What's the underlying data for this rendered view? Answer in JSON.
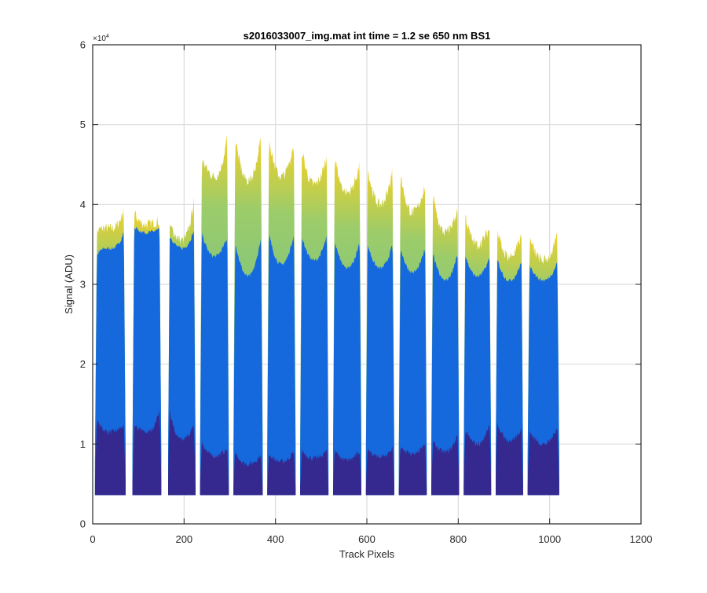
{
  "chart_data": {
    "type": "area",
    "title": "s2016033007_img.mat int time = 1.2 se  650 nm BS1",
    "xlabel": "Track Pixels",
    "ylabel": "Signal (ADU)",
    "xlim": [
      0,
      1200
    ],
    "ylim": [
      0,
      60000
    ],
    "y_exponent_label": "×10",
    "y_exponent_power": "4",
    "xticks": [
      0,
      200,
      400,
      600,
      800,
      1000,
      1200
    ],
    "xtick_labels": [
      "0",
      "200",
      "400",
      "600",
      "800",
      "1000",
      "1200"
    ],
    "yticks": [
      0,
      10000,
      20000,
      30000,
      40000,
      50000,
      60000
    ],
    "ytick_labels": [
      "0",
      "1",
      "2",
      "3",
      "4",
      "5",
      "6"
    ],
    "grid": true,
    "baseline": 3600,
    "colors": {
      "dark": "#35298f",
      "mid": "#1569dc",
      "light": "#4db7a4",
      "top": "#f1d027"
    },
    "segments": [
      {
        "x": [
          5,
          72
        ],
        "dark": [
          13500,
          11500,
          12500
        ],
        "mid": [
          33000,
          34500,
          37500
        ],
        "top": [
          36000,
          37000,
          40500
        ]
      },
      {
        "x": [
          87,
          150
        ],
        "dark": [
          12000,
          11500,
          15500
        ],
        "mid": [
          37500,
          36500,
          37000
        ],
        "top": [
          39500,
          37500,
          38000
        ]
      },
      {
        "x": [
          165,
          225
        ],
        "dark": [
          15500,
          10500,
          12500
        ],
        "mid": [
          36500,
          34500,
          37500
        ],
        "top": [
          37500,
          35500,
          42500
        ]
      },
      {
        "x": [
          235,
          298
        ],
        "dark": [
          11000,
          8500,
          9500
        ],
        "mid": [
          37500,
          33500,
          36500
        ],
        "top": [
          46000,
          43500,
          50500
        ]
      },
      {
        "x": [
          308,
          372
        ],
        "dark": [
          9500,
          7500,
          9000
        ],
        "mid": [
          36500,
          31000,
          37500
        ],
        "top": [
          50000,
          43000,
          50000
        ]
      },
      {
        "x": [
          382,
          444
        ],
        "dark": [
          9000,
          7800,
          9500
        ],
        "mid": [
          37500,
          32500,
          37500
        ],
        "top": [
          50000,
          43500,
          49000
        ]
      },
      {
        "x": [
          454,
          516
        ],
        "dark": [
          9500,
          8200,
          9500
        ],
        "mid": [
          37000,
          33000,
          37000
        ],
        "top": [
          48500,
          42500,
          47000
        ]
      },
      {
        "x": [
          526,
          588
        ],
        "dark": [
          9500,
          8000,
          9500
        ],
        "mid": [
          36500,
          32000,
          36500
        ],
        "top": [
          47500,
          41500,
          46000
        ]
      },
      {
        "x": [
          598,
          660
        ],
        "dark": [
          9500,
          8500,
          10000
        ],
        "mid": [
          36000,
          32000,
          36000
        ],
        "top": [
          46000,
          40000,
          45500
        ]
      },
      {
        "x": [
          670,
          731
        ],
        "dark": [
          10000,
          8800,
          10500
        ],
        "mid": [
          35500,
          31500,
          35500
        ],
        "top": [
          45500,
          39000,
          43500
        ]
      },
      {
        "x": [
          741,
          802
        ],
        "dark": [
          10500,
          9000,
          12000
        ],
        "mid": [
          35000,
          30500,
          35000
        ],
        "top": [
          43000,
          36500,
          40000
        ]
      },
      {
        "x": [
          812,
          872
        ],
        "dark": [
          12000,
          10000,
          13500
        ],
        "mid": [
          34500,
          31000,
          34000
        ],
        "top": [
          40000,
          35000,
          37500
        ]
      },
      {
        "x": [
          882,
          942
        ],
        "dark": [
          13500,
          10500,
          12000
        ],
        "mid": [
          34000,
          30500,
          33500
        ],
        "top": [
          37500,
          33500,
          37000
        ]
      },
      {
        "x": [
          952,
          1021
        ],
        "dark": [
          12000,
          10000,
          13000
        ],
        "mid": [
          33000,
          30500,
          33500
        ],
        "top": [
          36500,
          33000,
          37000
        ]
      }
    ]
  }
}
